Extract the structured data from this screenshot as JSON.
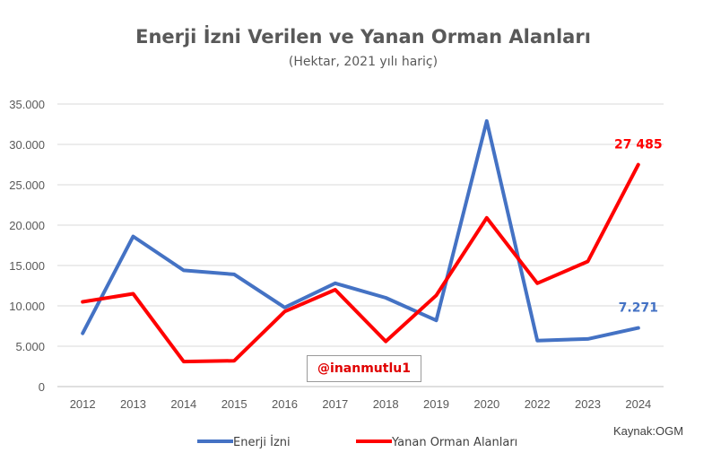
{
  "chart_data": {
    "type": "line",
    "title": "Enerji İzni Verilen ve Yanan Orman Alanları",
    "subtitle": "(Hektar, 2021 yılı hariç)",
    "categories": [
      "2012",
      "2013",
      "2014",
      "2015",
      "2016",
      "2017",
      "2018",
      "2019",
      "2020",
      "2022",
      "2023",
      "2024"
    ],
    "series": [
      {
        "name": "Enerji İzni",
        "color": "#4472c4",
        "values": [
          6600,
          18600,
          14400,
          13900,
          9800,
          12800,
          11000,
          8200,
          32900,
          5700,
          5900,
          7271
        ],
        "end_label": "7.271"
      },
      {
        "name": "Yanan Orman Alanları",
        "color": "#ff0000",
        "values": [
          10500,
          11500,
          3100,
          3200,
          9300,
          12000,
          5600,
          11300,
          20900,
          12800,
          15500,
          27485
        ],
        "end_label": "27 485"
      }
    ],
    "y_ticks": [
      "0",
      "5.000",
      "10.000",
      "15.000",
      "20.000",
      "25.000",
      "30.000",
      "35.000"
    ],
    "ylim": [
      0,
      35000
    ],
    "grid": true,
    "legend_position": "bottom"
  },
  "watermark": "@inanmutlu1",
  "source": "Kaynak:OGM"
}
